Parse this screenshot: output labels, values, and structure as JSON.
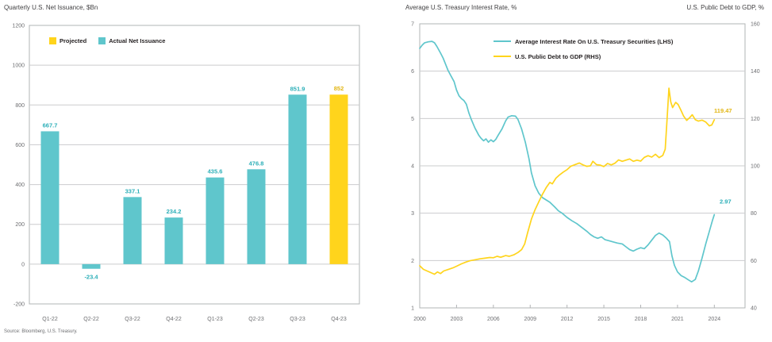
{
  "source_note": "Source: Bloomberg, U.S. Treasury.",
  "colors": {
    "teal": "#5FC6CC",
    "yellow": "#FFD41C",
    "teal_label": "#2CAFB8",
    "yellow_label": "#E2B614",
    "axis_text": "#6D6E71",
    "grid": "#CBCCCE",
    "border": "#B2B4B6",
    "title_text": "#414042",
    "legend_text": "#231F20"
  },
  "chart_data": [
    {
      "type": "bar",
      "title": "Quarterly U.S. Net Issuance, $Bn",
      "categories": [
        "Q1-22",
        "Q2-22",
        "Q3-22",
        "Q4-22",
        "Q1-23",
        "Q2-23",
        "Q3-23",
        "Q4-23"
      ],
      "values": [
        667.7,
        -23.4,
        337.1,
        234.2,
        435.6,
        476.8,
        851.9,
        852
      ],
      "bar_colors": [
        "teal",
        "teal",
        "teal",
        "teal",
        "teal",
        "teal",
        "teal",
        "yellow"
      ],
      "label_colors": [
        "teal_label",
        "teal_label",
        "teal_label",
        "teal_label",
        "teal_label",
        "teal_label",
        "teal_label",
        "yellow_label"
      ],
      "legend": [
        {
          "label": "Projected",
          "color": "yellow"
        },
        {
          "label": "Actual Net Issuance",
          "color": "teal"
        }
      ],
      "ylim": [
        -200,
        1200
      ],
      "ytick_step": 200,
      "yticks": [
        1200,
        1000,
        800,
        600,
        400,
        200,
        0,
        -200
      ],
      "grid": true,
      "legend_position": "top-left-inside"
    },
    {
      "type": "line",
      "title_left": "Average U.S. Treasury Interest Rate, %",
      "title_right": "U.S. Public Debt to GDP, %",
      "x_ticks": [
        2000,
        2003,
        2006,
        2009,
        2012,
        2015,
        2018,
        2021,
        2024
      ],
      "xlim": [
        2000,
        2026.5
      ],
      "lhs_ylim": [
        1,
        7
      ],
      "lhs_yticks": [
        7,
        6,
        5,
        4,
        3,
        2,
        1
      ],
      "rhs_ylim": [
        40,
        160
      ],
      "rhs_yticks": [
        160,
        140,
        120,
        100,
        80,
        60,
        40
      ],
      "grid": true,
      "legend_position": "top-center-inside",
      "series": [
        {
          "name": "Average Interest Rate On U.S. Treasury Securities (LHS)",
          "axis": "lhs",
          "color": "teal",
          "label_color": "teal_label",
          "end_label": "2.97",
          "points": [
            [
              2000.0,
              6.48
            ],
            [
              2000.2,
              6.55
            ],
            [
              2000.4,
              6.6
            ],
            [
              2000.7,
              6.62
            ],
            [
              2001.0,
              6.63
            ],
            [
              2001.2,
              6.6
            ],
            [
              2001.4,
              6.52
            ],
            [
              2001.7,
              6.38
            ],
            [
              2001.9,
              6.28
            ],
            [
              2002.1,
              6.15
            ],
            [
              2002.3,
              6.02
            ],
            [
              2002.5,
              5.92
            ],
            [
              2002.8,
              5.78
            ],
            [
              2003.0,
              5.6
            ],
            [
              2003.2,
              5.48
            ],
            [
              2003.4,
              5.42
            ],
            [
              2003.6,
              5.38
            ],
            [
              2003.8,
              5.3
            ],
            [
              2004.0,
              5.12
            ],
            [
              2004.2,
              4.98
            ],
            [
              2004.5,
              4.8
            ],
            [
              2004.8,
              4.65
            ],
            [
              2005.0,
              4.58
            ],
            [
              2005.2,
              4.53
            ],
            [
              2005.4,
              4.57
            ],
            [
              2005.6,
              4.5
            ],
            [
              2005.8,
              4.55
            ],
            [
              2006.0,
              4.51
            ],
            [
              2006.2,
              4.56
            ],
            [
              2006.4,
              4.65
            ],
            [
              2006.7,
              4.78
            ],
            [
              2007.0,
              4.95
            ],
            [
              2007.2,
              5.03
            ],
            [
              2007.5,
              5.06
            ],
            [
              2007.8,
              5.05
            ],
            [
              2008.0,
              4.98
            ],
            [
              2008.3,
              4.78
            ],
            [
              2008.6,
              4.5
            ],
            [
              2008.9,
              4.15
            ],
            [
              2009.1,
              3.85
            ],
            [
              2009.4,
              3.58
            ],
            [
              2009.7,
              3.42
            ],
            [
              2010.0,
              3.33
            ],
            [
              2010.3,
              3.28
            ],
            [
              2010.6,
              3.23
            ],
            [
              2011.0,
              3.13
            ],
            [
              2011.3,
              3.05
            ],
            [
              2011.6,
              3.0
            ],
            [
              2012.0,
              2.91
            ],
            [
              2012.4,
              2.84
            ],
            [
              2012.8,
              2.78
            ],
            [
              2013.2,
              2.7
            ],
            [
              2013.6,
              2.62
            ],
            [
              2013.9,
              2.55
            ],
            [
              2014.2,
              2.5
            ],
            [
              2014.5,
              2.47
            ],
            [
              2014.8,
              2.5
            ],
            [
              2015.1,
              2.44
            ],
            [
              2015.4,
              2.42
            ],
            [
              2015.8,
              2.39
            ],
            [
              2016.1,
              2.37
            ],
            [
              2016.5,
              2.35
            ],
            [
              2016.8,
              2.29
            ],
            [
              2017.1,
              2.23
            ],
            [
              2017.4,
              2.2
            ],
            [
              2017.7,
              2.24
            ],
            [
              2018.0,
              2.27
            ],
            [
              2018.3,
              2.25
            ],
            [
              2018.6,
              2.33
            ],
            [
              2018.9,
              2.43
            ],
            [
              2019.2,
              2.53
            ],
            [
              2019.5,
              2.58
            ],
            [
              2019.8,
              2.54
            ],
            [
              2020.1,
              2.47
            ],
            [
              2020.35,
              2.4
            ],
            [
              2020.55,
              2.1
            ],
            [
              2020.75,
              1.9
            ],
            [
              2021.0,
              1.76
            ],
            [
              2021.3,
              1.68
            ],
            [
              2021.6,
              1.64
            ],
            [
              2021.9,
              1.59
            ],
            [
              2022.15,
              1.55
            ],
            [
              2022.45,
              1.6
            ],
            [
              2022.7,
              1.78
            ],
            [
              2023.0,
              2.05
            ],
            [
              2023.3,
              2.35
            ],
            [
              2023.6,
              2.62
            ],
            [
              2023.85,
              2.85
            ],
            [
              2024.0,
              2.97
            ]
          ]
        },
        {
          "name": "U.S. Public Debt to GDP (RHS)",
          "axis": "rhs",
          "color": "yellow",
          "label_color": "yellow_label",
          "end_label": "119.47",
          "points": [
            [
              2000.0,
              57.8
            ],
            [
              2000.3,
              56.3
            ],
            [
              2000.6,
              55.6
            ],
            [
              2000.9,
              54.9
            ],
            [
              2001.2,
              54.2
            ],
            [
              2001.45,
              55.2
            ],
            [
              2001.7,
              54.5
            ],
            [
              2001.95,
              55.6
            ],
            [
              2002.3,
              56.2
            ],
            [
              2002.7,
              56.9
            ],
            [
              2003.0,
              57.6
            ],
            [
              2003.4,
              58.6
            ],
            [
              2003.8,
              59.4
            ],
            [
              2004.1,
              59.9
            ],
            [
              2004.5,
              60.3
            ],
            [
              2004.9,
              60.7
            ],
            [
              2005.3,
              61.0
            ],
            [
              2005.7,
              61.3
            ],
            [
              2006.0,
              61.2
            ],
            [
              2006.3,
              61.8
            ],
            [
              2006.6,
              61.4
            ],
            [
              2007.0,
              62.1
            ],
            [
              2007.3,
              61.8
            ],
            [
              2007.7,
              62.5
            ],
            [
              2008.0,
              63.4
            ],
            [
              2008.3,
              64.6
            ],
            [
              2008.55,
              67.0
            ],
            [
              2008.8,
              72.0
            ],
            [
              2009.1,
              77.5
            ],
            [
              2009.4,
              81.5
            ],
            [
              2009.7,
              84.8
            ],
            [
              2010.0,
              88.0
            ],
            [
              2010.3,
              90.8
            ],
            [
              2010.6,
              93.0
            ],
            [
              2010.8,
              92.4
            ],
            [
              2011.1,
              94.8
            ],
            [
              2011.4,
              96.2
            ],
            [
              2011.7,
              97.4
            ],
            [
              2012.0,
              98.4
            ],
            [
              2012.3,
              99.8
            ],
            [
              2012.7,
              100.6
            ],
            [
              2013.0,
              101.2
            ],
            [
              2013.3,
              100.4
            ],
            [
              2013.6,
              99.8
            ],
            [
              2013.9,
              100.0
            ],
            [
              2014.1,
              101.9
            ],
            [
              2014.4,
              100.5
            ],
            [
              2014.7,
              100.3
            ],
            [
              2015.0,
              99.7
            ],
            [
              2015.3,
              101.0
            ],
            [
              2015.6,
              100.4
            ],
            [
              2015.9,
              101.1
            ],
            [
              2016.2,
              102.5
            ],
            [
              2016.5,
              101.9
            ],
            [
              2016.8,
              102.4
            ],
            [
              2017.1,
              102.9
            ],
            [
              2017.4,
              101.9
            ],
            [
              2017.7,
              102.4
            ],
            [
              2018.0,
              102.0
            ],
            [
              2018.3,
              103.6
            ],
            [
              2018.6,
              104.3
            ],
            [
              2018.9,
              103.7
            ],
            [
              2019.2,
              104.9
            ],
            [
              2019.5,
              103.5
            ],
            [
              2019.8,
              104.4
            ],
            [
              2020.0,
              107.0
            ],
            [
              2020.15,
              120.0
            ],
            [
              2020.3,
              132.8
            ],
            [
              2020.45,
              127.0
            ],
            [
              2020.6,
              124.6
            ],
            [
              2020.85,
              126.8
            ],
            [
              2021.05,
              125.9
            ],
            [
              2021.25,
              123.8
            ],
            [
              2021.5,
              121.0
            ],
            [
              2021.75,
              119.2
            ],
            [
              2022.0,
              120.4
            ],
            [
              2022.2,
              121.6
            ],
            [
              2022.45,
              119.5
            ],
            [
              2022.7,
              118.9
            ],
            [
              2023.0,
              119.3
            ],
            [
              2023.3,
              118.5
            ],
            [
              2023.6,
              116.9
            ],
            [
              2023.8,
              117.3
            ],
            [
              2024.0,
              119.47
            ]
          ]
        }
      ]
    }
  ]
}
